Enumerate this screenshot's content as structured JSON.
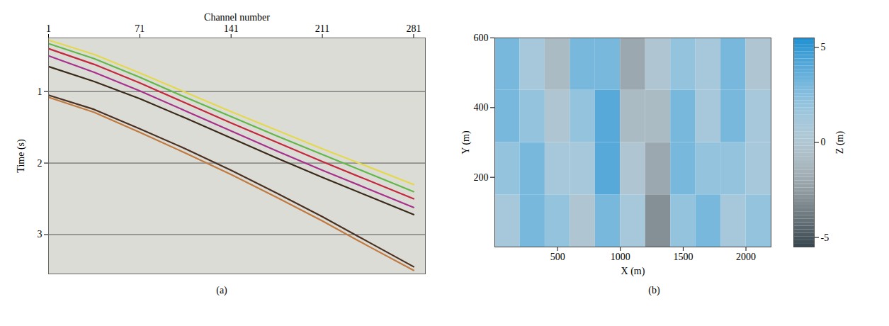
{
  "chart_data": [
    {
      "type": "line",
      "panel_label": "(a)",
      "xlabel": "Channel number",
      "ylabel": "Time (s)",
      "x": [
        1,
        36,
        71,
        106,
        141,
        176,
        211,
        246,
        281
      ],
      "xlim": [
        1,
        290
      ],
      "xticks": [
        1,
        71,
        141,
        211,
        281
      ],
      "ylim": [
        0.25,
        3.55
      ],
      "yticks": [
        1,
        2,
        3
      ],
      "grid": true,
      "series": [
        {
          "color": "#e3d84e",
          "values": [
            0.28,
            0.48,
            0.74,
            1.01,
            1.28,
            1.54,
            1.8,
            2.05,
            2.3
          ]
        },
        {
          "color": "#62b847",
          "values": [
            0.33,
            0.54,
            0.8,
            1.08,
            1.35,
            1.62,
            1.88,
            2.14,
            2.4
          ]
        },
        {
          "color": "#c4283c",
          "values": [
            0.4,
            0.62,
            0.88,
            1.16,
            1.44,
            1.71,
            1.98,
            2.24,
            2.5
          ]
        },
        {
          "color": "#a8308c",
          "values": [
            0.5,
            0.73,
            0.99,
            1.27,
            1.55,
            1.83,
            2.1,
            2.36,
            2.62
          ]
        },
        {
          "color": "#3a2a1a",
          "values": [
            0.65,
            0.86,
            1.1,
            1.37,
            1.65,
            1.93,
            2.2,
            2.46,
            2.72
          ]
        },
        {
          "color": "#4a3020",
          "values": [
            1.05,
            1.25,
            1.52,
            1.8,
            2.1,
            2.42,
            2.75,
            3.1,
            3.45
          ]
        },
        {
          "color": "#c07a40",
          "values": [
            1.08,
            1.29,
            1.57,
            1.86,
            2.16,
            2.48,
            2.81,
            3.16,
            3.5
          ]
        }
      ]
    },
    {
      "type": "heatmap",
      "panel_label": "(b)",
      "xlabel": "X (m)",
      "ylabel": "Y (m)",
      "zlabel": "Z (m)",
      "x_bins": [
        0,
        200,
        400,
        600,
        800,
        1000,
        1200,
        1400,
        1600,
        1800,
        2000,
        2200
      ],
      "y_bins": [
        0,
        150,
        300,
        450,
        600
      ],
      "z": [
        [
          1,
          3,
          2,
          0,
          3,
          1,
          -3,
          2,
          3,
          1,
          2
        ],
        [
          2,
          3,
          1,
          1,
          4,
          0,
          -2,
          3,
          2,
          2,
          1
        ],
        [
          3,
          2,
          0,
          2,
          4,
          -1,
          -1,
          3,
          1,
          3,
          1
        ],
        [
          3,
          1,
          -1,
          3,
          3,
          -2,
          0,
          2,
          1,
          3,
          0
        ]
      ],
      "xlim": [
        0,
        2200
      ],
      "xticks": [
        500,
        1000,
        1500,
        2000
      ],
      "ylim": [
        0,
        600
      ],
      "yticks": [
        200,
        400,
        600
      ],
      "zlim": [
        -5.5,
        5.5
      ],
      "zticks": [
        -5,
        0,
        5
      ],
      "colors": [
        "#37464e",
        "#f1f3f4",
        "#1f8fd0"
      ]
    }
  ]
}
